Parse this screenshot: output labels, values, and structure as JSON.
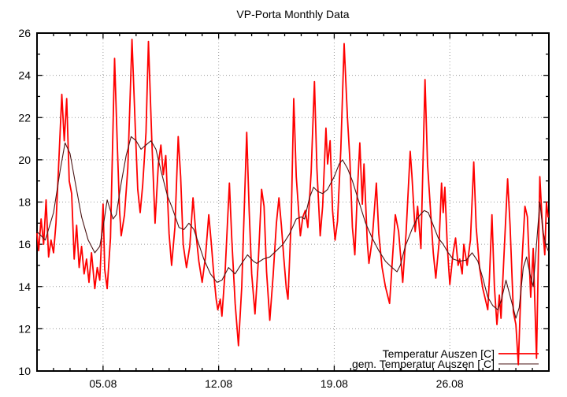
{
  "title": "VP-Porta Monthly Data",
  "legend": {
    "entries": [
      {
        "label": "Temperatur Auszen [C]",
        "color": "#ff0000"
      },
      {
        "label": "gem. Temperatur Auszen [ C]",
        "color": "#4a1414"
      }
    ]
  },
  "colors": {
    "background": "#ffffff",
    "border": "#000000",
    "grid": "#9a9a9a",
    "series_raw": "#ff0000",
    "series_smooth": "#4a1414"
  },
  "chart_data": {
    "type": "line",
    "title": "VP-Porta Monthly Data",
    "xlabel": "",
    "ylabel": "",
    "x_axis": {
      "unit": "date (dd.mm)",
      "range_days": [
        1,
        32
      ],
      "tick_days": [
        5,
        12,
        19,
        26
      ],
      "tick_labels": [
        "05.08",
        "12.08",
        "19.08",
        "26.08"
      ],
      "minor_tick_interval_days": 1
    },
    "y_axis": {
      "unit": "Temperatur [C]",
      "range": [
        10,
        26
      ],
      "tick_interval": 2,
      "minor_tick_interval": 1,
      "tick_values": [
        10,
        12,
        14,
        16,
        18,
        20,
        22,
        24,
        26
      ]
    },
    "grid": {
      "horizontal": true,
      "vertical": true,
      "style": "dotted"
    },
    "legend_position": "bottom-right-inside",
    "series": [
      {
        "name": "Temperatur Auszen [C]",
        "color": "#ff0000",
        "width": 1.8,
        "points": [
          [
            1.0,
            16.5
          ],
          [
            1.1,
            15.7
          ],
          [
            1.25,
            17.2
          ],
          [
            1.4,
            16.0
          ],
          [
            1.55,
            18.1
          ],
          [
            1.7,
            15.4
          ],
          [
            1.85,
            16.2
          ],
          [
            2.0,
            15.6
          ],
          [
            2.15,
            17.0
          ],
          [
            2.3,
            19.6
          ],
          [
            2.5,
            23.1
          ],
          [
            2.65,
            20.9
          ],
          [
            2.8,
            22.9
          ],
          [
            2.95,
            19.0
          ],
          [
            3.1,
            18.4
          ],
          [
            3.25,
            15.3
          ],
          [
            3.4,
            16.9
          ],
          [
            3.55,
            14.9
          ],
          [
            3.7,
            15.9
          ],
          [
            3.85,
            14.6
          ],
          [
            4.0,
            15.3
          ],
          [
            4.15,
            14.2
          ],
          [
            4.3,
            15.6
          ],
          [
            4.5,
            13.9
          ],
          [
            4.65,
            14.9
          ],
          [
            4.8,
            14.3
          ],
          [
            5.0,
            17.9
          ],
          [
            5.1,
            14.8
          ],
          [
            5.25,
            13.9
          ],
          [
            5.45,
            16.3
          ],
          [
            5.7,
            24.8
          ],
          [
            5.85,
            21.0
          ],
          [
            6.0,
            17.6
          ],
          [
            6.1,
            16.4
          ],
          [
            6.3,
            17.4
          ],
          [
            6.5,
            19.6
          ],
          [
            6.75,
            25.7
          ],
          [
            6.95,
            21.5
          ],
          [
            7.1,
            18.6
          ],
          [
            7.25,
            17.5
          ],
          [
            7.4,
            18.8
          ],
          [
            7.6,
            21.3
          ],
          [
            7.75,
            25.6
          ],
          [
            7.95,
            21.0
          ],
          [
            8.15,
            17.0
          ],
          [
            8.35,
            19.8
          ],
          [
            8.5,
            20.7
          ],
          [
            8.65,
            19.3
          ],
          [
            8.8,
            20.2
          ],
          [
            9.0,
            16.5
          ],
          [
            9.15,
            15.0
          ],
          [
            9.35,
            16.8
          ],
          [
            9.55,
            21.1
          ],
          [
            9.7,
            19.2
          ],
          [
            9.85,
            16.0
          ],
          [
            10.05,
            14.9
          ],
          [
            10.25,
            15.9
          ],
          [
            10.45,
            18.2
          ],
          [
            10.6,
            16.7
          ],
          [
            10.8,
            15.2
          ],
          [
            11.0,
            14.2
          ],
          [
            11.2,
            15.4
          ],
          [
            11.4,
            17.4
          ],
          [
            11.55,
            16.1
          ],
          [
            11.7,
            14.6
          ],
          [
            11.85,
            13.4
          ],
          [
            11.95,
            12.9
          ],
          [
            12.1,
            13.4
          ],
          [
            12.2,
            12.6
          ],
          [
            12.4,
            14.8
          ],
          [
            12.65,
            18.9
          ],
          [
            12.8,
            16.2
          ],
          [
            13.0,
            13.2
          ],
          [
            13.2,
            11.2
          ],
          [
            13.4,
            14.0
          ],
          [
            13.7,
            21.3
          ],
          [
            13.85,
            17.6
          ],
          [
            14.0,
            14.6
          ],
          [
            14.2,
            12.7
          ],
          [
            14.4,
            15.2
          ],
          [
            14.6,
            18.6
          ],
          [
            14.75,
            17.8
          ],
          [
            14.9,
            14.7
          ],
          [
            15.1,
            12.4
          ],
          [
            15.3,
            14.5
          ],
          [
            15.5,
            17.0
          ],
          [
            15.65,
            18.2
          ],
          [
            15.8,
            16.9
          ],
          [
            15.95,
            15.3
          ],
          [
            16.1,
            13.9
          ],
          [
            16.2,
            13.4
          ],
          [
            16.4,
            17.3
          ],
          [
            16.55,
            22.9
          ],
          [
            16.7,
            19.2
          ],
          [
            16.95,
            16.4
          ],
          [
            17.1,
            17.3
          ],
          [
            17.25,
            17.6
          ],
          [
            17.4,
            16.8
          ],
          [
            17.6,
            19.4
          ],
          [
            17.8,
            23.7
          ],
          [
            17.95,
            19.6
          ],
          [
            18.15,
            16.4
          ],
          [
            18.3,
            17.8
          ],
          [
            18.5,
            21.5
          ],
          [
            18.6,
            19.8
          ],
          [
            18.75,
            20.9
          ],
          [
            18.9,
            17.6
          ],
          [
            19.05,
            16.2
          ],
          [
            19.2,
            17.1
          ],
          [
            19.4,
            20.5
          ],
          [
            19.6,
            25.5
          ],
          [
            19.8,
            22.0
          ],
          [
            19.95,
            20.0
          ],
          [
            20.1,
            16.8
          ],
          [
            20.25,
            15.5
          ],
          [
            20.4,
            18.5
          ],
          [
            20.55,
            20.8
          ],
          [
            20.7,
            17.9
          ],
          [
            20.8,
            19.8
          ],
          [
            21.0,
            16.1
          ],
          [
            21.1,
            15.1
          ],
          [
            21.3,
            16.2
          ],
          [
            21.55,
            18.9
          ],
          [
            21.7,
            16.5
          ],
          [
            21.9,
            14.9
          ],
          [
            22.1,
            14.0
          ],
          [
            22.35,
            13.2
          ],
          [
            22.5,
            15.0
          ],
          [
            22.7,
            17.4
          ],
          [
            22.9,
            16.6
          ],
          [
            23.15,
            14.2
          ],
          [
            23.35,
            16.5
          ],
          [
            23.6,
            20.4
          ],
          [
            23.7,
            19.3
          ],
          [
            23.9,
            16.6
          ],
          [
            24.05,
            17.8
          ],
          [
            24.25,
            15.8
          ],
          [
            24.5,
            23.8
          ],
          [
            24.65,
            19.8
          ],
          [
            24.8,
            18.0
          ],
          [
            25.0,
            15.6
          ],
          [
            25.15,
            14.4
          ],
          [
            25.35,
            16.1
          ],
          [
            25.5,
            18.9
          ],
          [
            25.6,
            17.5
          ],
          [
            25.7,
            18.7
          ],
          [
            25.85,
            15.9
          ],
          [
            26.0,
            14.1
          ],
          [
            26.2,
            15.6
          ],
          [
            26.35,
            16.3
          ],
          [
            26.5,
            15.0
          ],
          [
            26.6,
            15.3
          ],
          [
            26.75,
            14.6
          ],
          [
            26.85,
            16.0
          ],
          [
            27.05,
            15.0
          ],
          [
            27.25,
            16.2
          ],
          [
            27.45,
            19.9
          ],
          [
            27.6,
            16.8
          ],
          [
            27.8,
            14.9
          ],
          [
            28.0,
            13.9
          ],
          [
            28.15,
            13.4
          ],
          [
            28.3,
            12.9
          ],
          [
            28.4,
            14.4
          ],
          [
            28.55,
            17.4
          ],
          [
            28.7,
            14.0
          ],
          [
            28.85,
            12.2
          ],
          [
            29.0,
            13.6
          ],
          [
            29.1,
            12.5
          ],
          [
            29.3,
            15.8
          ],
          [
            29.5,
            19.1
          ],
          [
            29.65,
            16.9
          ],
          [
            29.85,
            12.8
          ],
          [
            30.0,
            12.2
          ],
          [
            30.15,
            10.3
          ],
          [
            30.35,
            14.9
          ],
          [
            30.55,
            17.8
          ],
          [
            30.7,
            17.3
          ],
          [
            30.9,
            13.5
          ],
          [
            31.05,
            15.8
          ],
          [
            31.25,
            10.6
          ],
          [
            31.45,
            19.2
          ],
          [
            31.6,
            17.0
          ],
          [
            31.75,
            15.5
          ],
          [
            31.85,
            18.0
          ],
          [
            31.95,
            17.3
          ]
        ]
      },
      {
        "name": "gem. Temperatur Auszen [ C]",
        "color": "#4a1414",
        "width": 1.1,
        "points": [
          [
            1.0,
            16.6
          ],
          [
            1.5,
            16.2
          ],
          [
            2.0,
            17.5
          ],
          [
            2.4,
            19.5
          ],
          [
            2.7,
            20.8
          ],
          [
            3.0,
            20.3
          ],
          [
            3.3,
            19.0
          ],
          [
            3.7,
            17.3
          ],
          [
            4.1,
            16.2
          ],
          [
            4.5,
            15.6
          ],
          [
            4.8,
            15.9
          ],
          [
            5.0,
            16.8
          ],
          [
            5.25,
            18.1
          ],
          [
            5.6,
            17.2
          ],
          [
            5.8,
            17.4
          ],
          [
            6.1,
            18.9
          ],
          [
            6.4,
            20.2
          ],
          [
            6.7,
            21.1
          ],
          [
            7.0,
            20.9
          ],
          [
            7.3,
            20.5
          ],
          [
            7.6,
            20.7
          ],
          [
            7.9,
            20.9
          ],
          [
            8.2,
            20.5
          ],
          [
            8.5,
            19.5
          ],
          [
            8.9,
            18.3
          ],
          [
            9.2,
            17.7
          ],
          [
            9.6,
            16.8
          ],
          [
            9.9,
            16.7
          ],
          [
            10.2,
            17.0
          ],
          [
            10.5,
            16.7
          ],
          [
            10.8,
            16.0
          ],
          [
            11.1,
            15.3
          ],
          [
            11.5,
            14.6
          ],
          [
            11.9,
            14.2
          ],
          [
            12.2,
            14.3
          ],
          [
            12.6,
            14.9
          ],
          [
            13.0,
            14.6
          ],
          [
            13.4,
            15.1
          ],
          [
            13.75,
            15.5
          ],
          [
            14.1,
            15.2
          ],
          [
            14.3,
            15.1
          ],
          [
            14.7,
            15.3
          ],
          [
            15.1,
            15.4
          ],
          [
            15.5,
            15.7
          ],
          [
            15.9,
            16.0
          ],
          [
            16.3,
            16.5
          ],
          [
            16.7,
            17.2
          ],
          [
            17.0,
            17.3
          ],
          [
            17.2,
            17.2
          ],
          [
            17.5,
            18.2
          ],
          [
            17.75,
            18.7
          ],
          [
            18.0,
            18.5
          ],
          [
            18.3,
            18.4
          ],
          [
            18.6,
            18.6
          ],
          [
            19.0,
            19.2
          ],
          [
            19.3,
            19.8
          ],
          [
            19.5,
            20.0
          ],
          [
            19.8,
            19.6
          ],
          [
            20.1,
            19.0
          ],
          [
            20.5,
            18.0
          ],
          [
            20.9,
            17.0
          ],
          [
            21.3,
            16.3
          ],
          [
            21.7,
            15.7
          ],
          [
            22.1,
            15.2
          ],
          [
            22.5,
            14.9
          ],
          [
            22.8,
            14.7
          ],
          [
            23.0,
            15.0
          ],
          [
            23.3,
            15.9
          ],
          [
            23.7,
            16.7
          ],
          [
            24.0,
            17.2
          ],
          [
            24.2,
            17.4
          ],
          [
            24.45,
            17.6
          ],
          [
            24.7,
            17.5
          ],
          [
            25.0,
            16.9
          ],
          [
            25.3,
            16.3
          ],
          [
            25.6,
            16.0
          ],
          [
            25.9,
            15.6
          ],
          [
            26.2,
            15.3
          ],
          [
            26.6,
            15.2
          ],
          [
            27.0,
            15.25
          ],
          [
            27.35,
            15.6
          ],
          [
            27.7,
            15.2
          ],
          [
            28.0,
            14.4
          ],
          [
            28.3,
            13.5
          ],
          [
            28.6,
            13.1
          ],
          [
            28.9,
            12.9
          ],
          [
            29.1,
            13.3
          ],
          [
            29.4,
            14.3
          ],
          [
            29.7,
            13.4
          ],
          [
            30.0,
            12.5
          ],
          [
            30.2,
            13.0
          ],
          [
            30.45,
            14.9
          ],
          [
            30.65,
            15.4
          ],
          [
            30.85,
            14.6
          ],
          [
            31.05,
            14.0
          ],
          [
            31.25,
            16.0
          ],
          [
            31.45,
            18.0
          ],
          [
            31.65,
            16.6
          ],
          [
            31.8,
            16.0
          ],
          [
            31.95,
            15.7
          ]
        ]
      }
    ]
  }
}
